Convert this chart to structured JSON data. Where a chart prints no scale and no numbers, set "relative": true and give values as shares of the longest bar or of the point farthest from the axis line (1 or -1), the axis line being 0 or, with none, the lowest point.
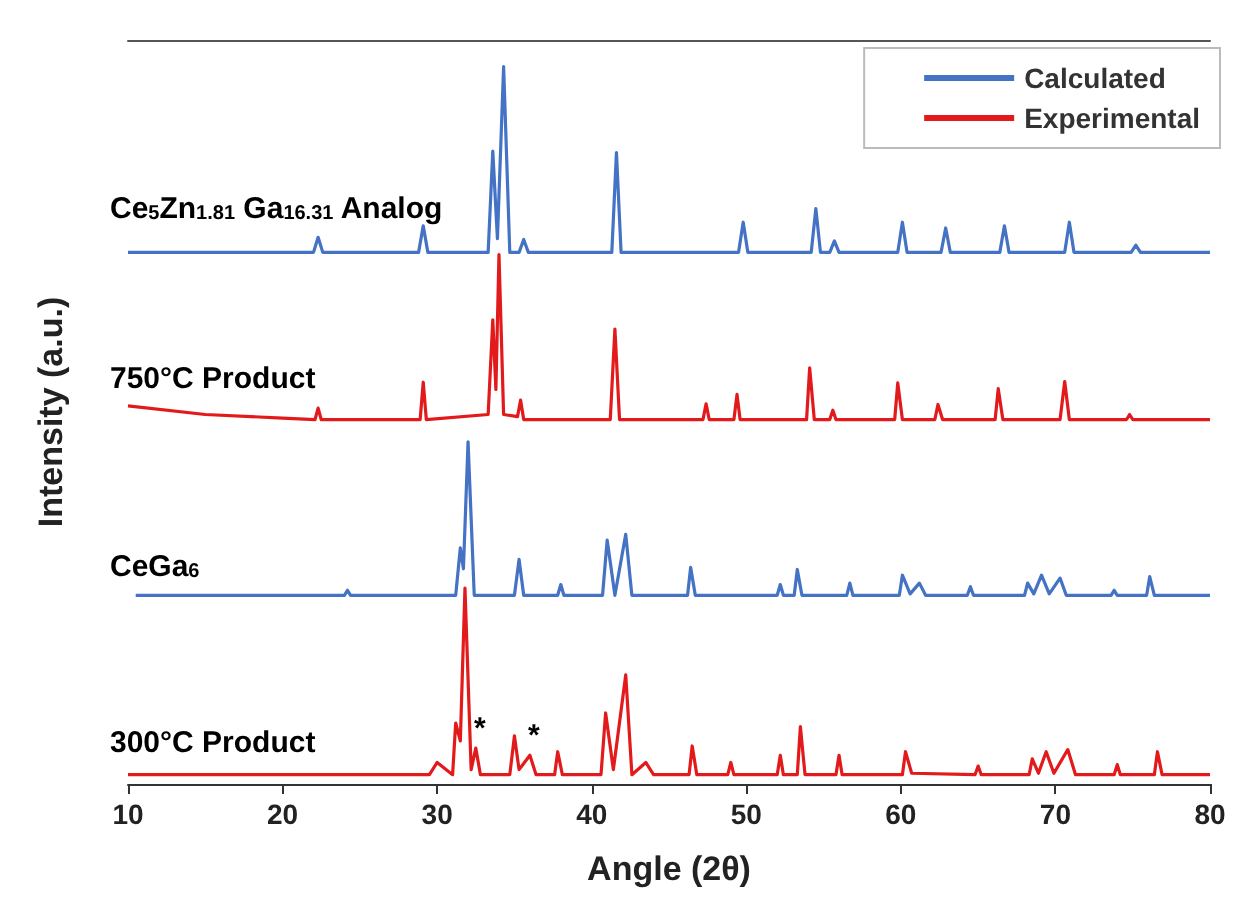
{
  "chart_data": {
    "type": "line",
    "relative": true,
    "xlabel": "Angle (2θ)",
    "ylabel": "Intensity (a.u.)",
    "xlim": [
      10,
      80
    ],
    "xticks": [
      10,
      20,
      30,
      40,
      50,
      60,
      70,
      80
    ],
    "grid": false,
    "legend": "top right",
    "marker": "none",
    "line_style": "solid",
    "series": [
      {
        "name": "Calculated",
        "color": "#4472c4",
        "x": [
          10,
          22,
          22.3,
          22.6,
          28.8,
          29.1,
          29.4,
          33.3,
          33.6,
          33.9,
          34.3,
          34.7,
          35.3,
          35.6,
          35.9,
          41.3,
          41.6,
          41.9,
          49.5,
          49.8,
          50.1,
          54.2,
          54.5,
          54.8,
          55.4,
          55.7,
          56,
          59.8,
          60.1,
          60.4,
          62.6,
          62.9,
          63.2,
          66.4,
          66.7,
          67,
          70.6,
          70.9,
          71.2,
          74.9,
          75.2,
          75.5,
          80,
          null,
          10.5,
          24,
          24.2,
          24.4,
          31.2,
          31.5,
          31.7,
          32.0,
          32.4,
          35.0,
          35.3,
          35.6,
          37.8,
          38.0,
          38.2,
          40.7,
          41.0,
          41.5,
          42.2,
          42.6,
          46.2,
          46.4,
          46.7,
          52.0,
          52.2,
          52.4,
          53.1,
          53.3,
          53.6,
          56.5,
          56.7,
          56.9,
          59.9,
          60.1,
          60.6,
          61.2,
          61.6,
          64.3,
          64.5,
          64.7,
          68.0,
          68.2,
          68.6,
          69.1,
          69.6,
          70.3,
          70.7,
          73.6,
          73.8,
          74,
          75.9,
          76.1,
          76.4,
          80
        ],
        "values": [
          0.741,
          0.741,
          0.762,
          0.741,
          0.741,
          0.778,
          0.741,
          0.741,
          0.882,
          0.76,
          1.0,
          0.741,
          0.741,
          0.759,
          0.741,
          0.741,
          0.88,
          0.741,
          0.741,
          0.783,
          0.741,
          0.741,
          0.802,
          0.741,
          0.741,
          0.757,
          0.741,
          0.741,
          0.783,
          0.741,
          0.741,
          0.775,
          0.741,
          0.741,
          0.778,
          0.741,
          0.741,
          0.783,
          0.741,
          0.741,
          0.751,
          0.741,
          0.741,
          null,
          0.263,
          0.263,
          0.27,
          0.263,
          0.263,
          0.329,
          0.3,
          0.477,
          0.263,
          0.263,
          0.313,
          0.263,
          0.263,
          0.278,
          0.263,
          0.263,
          0.34,
          0.263,
          0.348,
          0.263,
          0.263,
          0.302,
          0.263,
          0.263,
          0.278,
          0.263,
          0.263,
          0.299,
          0.263,
          0.263,
          0.28,
          0.263,
          0.263,
          0.291,
          0.265,
          0.28,
          0.263,
          0.263,
          0.275,
          0.263,
          0.263,
          0.28,
          0.265,
          0.291,
          0.265,
          0.287,
          0.263,
          0.263,
          0.27,
          0.263,
          0.263,
          0.289,
          0.263,
          0.263
        ]
      },
      {
        "name": "Experimental",
        "color": "#e31a1c",
        "x": [
          10,
          15,
          20,
          22.1,
          22.3,
          22.5,
          28.9,
          29.1,
          29.3,
          33.3,
          33.6,
          33.8,
          34.0,
          34.3,
          35.2,
          35.4,
          35.6,
          41.2,
          41.5,
          41.8,
          47.2,
          47.4,
          47.6,
          49.2,
          49.4,
          49.6,
          53.9,
          54.1,
          54.4,
          55.4,
          55.6,
          55.8,
          59.6,
          59.8,
          60.1,
          62.2,
          62.4,
          62.7,
          66.1,
          66.3,
          66.6,
          70.3,
          70.6,
          70.9,
          74.6,
          74.8,
          75,
          80,
          null,
          10,
          29.5,
          30,
          31.0,
          31.2,
          31.5,
          31.8,
          32.2,
          32.5,
          32.8,
          34.7,
          35.0,
          35.3,
          36.0,
          36.4,
          37.6,
          37.8,
          38.1,
          40.6,
          40.9,
          41.4,
          42.2,
          42.6,
          43.5,
          44,
          46.3,
          46.5,
          46.8,
          48.8,
          49,
          49.2,
          52,
          52.2,
          52.4,
          53.3,
          53.5,
          53.8,
          55.8,
          56,
          56.2,
          60.1,
          60.3,
          60.7,
          64.8,
          65,
          65.2,
          68.3,
          68.5,
          68.9,
          69.4,
          69.9,
          70.8,
          71.3,
          73.8,
          74,
          74.2,
          76.4,
          76.6,
          76.9,
          80
        ],
        "values": [
          0.527,
          0.515,
          0.51,
          0.508,
          0.524,
          0.508,
          0.508,
          0.56,
          0.508,
          0.515,
          0.647,
          0.55,
          0.738,
          0.515,
          0.512,
          0.535,
          0.508,
          0.508,
          0.634,
          0.508,
          0.508,
          0.53,
          0.508,
          0.508,
          0.543,
          0.508,
          0.508,
          0.58,
          0.508,
          0.508,
          0.521,
          0.508,
          0.508,
          0.559,
          0.508,
          0.508,
          0.529,
          0.508,
          0.508,
          0.551,
          0.508,
          0.508,
          0.561,
          0.508,
          0.508,
          0.515,
          0.508,
          0.508,
          null,
          0.013,
          0.013,
          0.03,
          0.013,
          0.085,
          0.06,
          0.273,
          0.02,
          0.05,
          0.013,
          0.013,
          0.067,
          0.02,
          0.04,
          0.013,
          0.013,
          0.045,
          0.013,
          0.013,
          0.099,
          0.02,
          0.152,
          0.013,
          0.03,
          0.013,
          0.013,
          0.053,
          0.013,
          0.013,
          0.03,
          0.013,
          0.013,
          0.04,
          0.013,
          0.013,
          0.08,
          0.013,
          0.013,
          0.04,
          0.013,
          0.013,
          0.045,
          0.015,
          0.013,
          0.025,
          0.013,
          0.013,
          0.035,
          0.015,
          0.045,
          0.015,
          0.048,
          0.013,
          0.013,
          0.027,
          0.013,
          0.013,
          0.045,
          0.013,
          0.013
        ]
      }
    ],
    "annotations": [
      "Ce$_{5}$Zn$_{1.81}$ Ga$_{16.31}$ Analog",
      "750°C Product",
      "CeGa$_{6}$",
      "300°C Product",
      {
        "text": "*",
        "x": 32.5,
        "y": 0.05
      },
      {
        "text": "*",
        "x": 36.0,
        "y": 0.04
      }
    ]
  }
}
